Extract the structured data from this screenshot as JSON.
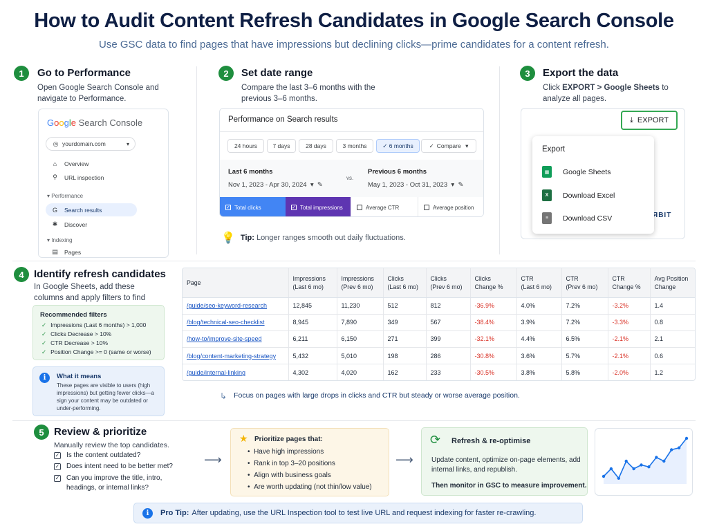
{
  "header": {
    "title": "How to Audit Content Refresh Candidates in Google Search Console",
    "subtitle": "Use GSC data to find pages that have impressions but declining clicks—prime candidates for a content refresh."
  },
  "step1": {
    "num": "1",
    "title": "Go to Performance",
    "desc": "Open Google Search Console and navigate to Performance.",
    "panel": {
      "logo_g": "G",
      "logo_o1": "o",
      "logo_o2": "o",
      "logo_g2": "g",
      "logo_l": "l",
      "logo_e": "e",
      "logo_rest": " Search Console",
      "domain": "yourdomain.com",
      "nav_overview": "Overview",
      "nav_url": "URL inspection",
      "sec_performance": "Performance",
      "nav_search": "Search results",
      "nav_discover": "Discover",
      "sec_indexing": "Indexing",
      "nav_pages": "Pages"
    }
  },
  "step2": {
    "num": "2",
    "title": "Set date range",
    "desc": "Compare the last 3–6 months with the previous 3–6 months.",
    "panel": {
      "title": "Performance on Search results",
      "ranges": [
        "24 hours",
        "7 days",
        "28 days",
        "3 months",
        "6 months"
      ],
      "selected_range": "6 months",
      "compare": "Compare",
      "last_label": "Last 6 months",
      "last_value": "Nov 1, 2023 - Apr 30, 2024",
      "vs": "vs.",
      "prev_label": "Previous 6 months",
      "prev_value": "May 1, 2023 - Oct 31, 2023",
      "metrics": [
        "Total clicks",
        "Total impressions",
        "Average CTR",
        "Average position"
      ]
    },
    "tip_label": "Tip:",
    "tip_text": "Longer ranges smooth out daily fluctuations."
  },
  "step3": {
    "num": "3",
    "title": "Export the data",
    "desc_prefix": "Click ",
    "desc_bold": "EXPORT > Google Sheets",
    "desc_suffix": " to analyze all pages.",
    "export_button": "EXPORT",
    "menu_title": "Export",
    "menu_items": [
      "Google Sheets",
      "Download Excel",
      "Download CSV"
    ],
    "peek_text": "ЯBIT"
  },
  "step4": {
    "num": "4",
    "title": "Identify refresh candidates",
    "desc": "In Google Sheets, add these columns and apply filters to find opportunities.",
    "filters_title": "Recommended filters",
    "filters": [
      "Impressions (Last 6 months) > 1,000",
      "Clicks Decrease > 10%",
      "CTR Decrease > 10%",
      "Position Change >= 0 (same or worse)"
    ],
    "means_title": "What it means",
    "means_text": "These pages are visible to users (high impressions) but getting fewer clicks—a sign your content may be outdated or under-performing.",
    "table": {
      "headers": [
        [
          "Page",
          ""
        ],
        [
          "Impressions",
          "(Last 6 mo)"
        ],
        [
          "Impressions",
          "(Prev 6 mo)"
        ],
        [
          "Clicks",
          "(Last 6 mo)"
        ],
        [
          "Clicks",
          "(Prev 6 mo)"
        ],
        [
          "Clicks",
          "Change %"
        ],
        [
          "CTR",
          "(Last 6 mo)"
        ],
        [
          "CTR",
          "(Prev 6 mo)"
        ],
        [
          "CTR",
          "Change %"
        ],
        [
          "Avg Position",
          "Change"
        ]
      ],
      "rows": [
        [
          "/guide/seo-keyword-research",
          "12,845",
          "11,230",
          "512",
          "812",
          "-36.9%",
          "4.0%",
          "7.2%",
          "-3.2%",
          "1.4"
        ],
        [
          "/blog/technical-seo-checklist",
          "8,945",
          "7,890",
          "349",
          "567",
          "-38.4%",
          "3.9%",
          "7.2%",
          "-3.3%",
          "0.8"
        ],
        [
          "/how-to/improve-site-speed",
          "6,211",
          "6,150",
          "271",
          "399",
          "-32.1%",
          "4.4%",
          "6.5%",
          "-2.1%",
          "2.1"
        ],
        [
          "/blog/content-marketing-strategy",
          "5,432",
          "5,010",
          "198",
          "286",
          "-30.8%",
          "3.6%",
          "5.7%",
          "-2.1%",
          "0.6"
        ],
        [
          "/guide/internal-linking",
          "4,302",
          "4,020",
          "162",
          "233",
          "-30.5%",
          "3.8%",
          "5.8%",
          "-2.0%",
          "1.2"
        ]
      ]
    },
    "focus_note": "Focus on pages with large drops in clicks and CTR but steady or worse average position."
  },
  "step5": {
    "num": "5",
    "title": "Review & prioritize",
    "desc": "Manually review the top candidates.",
    "checks": [
      "Is the content outdated?",
      "Does intent need to be better met?",
      "Can you improve the title, intro, headings, or internal links?"
    ],
    "prio_title": "Prioritize pages that:",
    "prio_items": [
      "Have high impressions",
      "Rank in top 3–20 positions",
      "Align with business goals",
      "Are worth updating (not thin/low value)"
    ],
    "refresh_title": "Refresh & re-optimise",
    "refresh_text": "Update content, optimize on-page elements, add internal links, and republish.",
    "refresh_foot": "Then monitor in GSC to measure improvement.",
    "trend_values": [
      2,
      4,
      1.5,
      6,
      4,
      5,
      4.5,
      7,
      6,
      9,
      9.5,
      12
    ]
  },
  "protip": {
    "label": "Pro Tip:",
    "text": "After updating, use the URL Inspection tool to test live URL and request indexing for faster re-crawling."
  },
  "colors": {
    "step_green": "#1e8e3e",
    "title_navy": "#0f1f44",
    "negative_red": "#d93025",
    "link_blue": "#1a56c4"
  }
}
